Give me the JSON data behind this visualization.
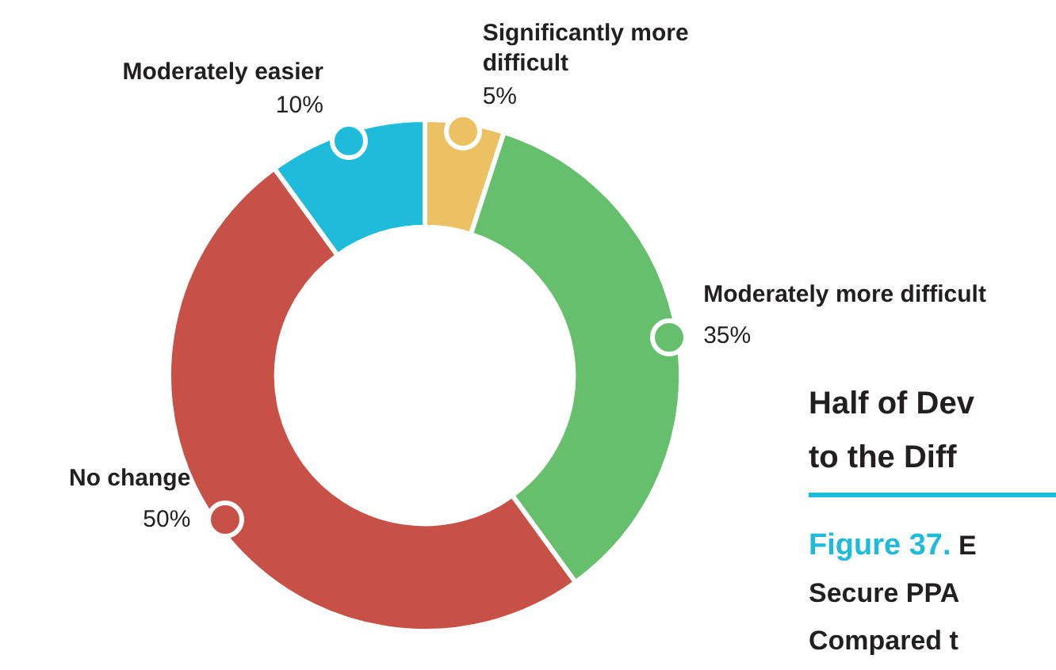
{
  "chart_data": {
    "type": "donut",
    "title": "Half of Dev\nto the Diff",
    "subtitle": "Figure 37. E\nSecure PPA\nCompared t",
    "categories": [
      "Significantly more difficult",
      "Moderately more difficult",
      "No change",
      "Moderately easier"
    ],
    "values": [
      5,
      35,
      50,
      10
    ],
    "value_labels": [
      "5%",
      "35%",
      "50%",
      "10%"
    ],
    "colors": [
      "#ebc163",
      "#66bf6c",
      "#c75146",
      "#1fbbdb"
    ],
    "legend": false
  }
}
